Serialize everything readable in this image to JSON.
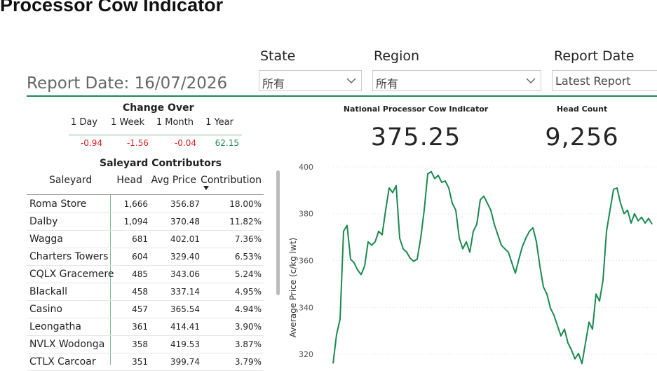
{
  "header": {
    "title": "Processor Cow Indicator"
  },
  "report_date": "Report Date: 16/07/2026",
  "filters": [
    {
      "label": "State",
      "value": "所有"
    },
    {
      "label": "Region",
      "value": "所有"
    },
    {
      "label": "Report Date",
      "value": "Latest Report"
    }
  ],
  "change_over": {
    "title": "Change Over",
    "columns": [
      "1 Day",
      "1 Week",
      "1 Month",
      "1 Year"
    ],
    "values": [
      "-0.94",
      "-1.56",
      "-0.04",
      "62.15"
    ]
  },
  "kpis": [
    {
      "label": "National Processor Cow Indicator",
      "value": "375.25"
    },
    {
      "label": "Head Count",
      "value": "9,256"
    }
  ],
  "saleyard_table": {
    "title": "Saleyard Contributors",
    "columns": [
      "Saleyard",
      "Head",
      "Avg Price",
      "Contribution"
    ],
    "rows": [
      [
        "Roma Store",
        "1,666",
        "356.87",
        "18.00%"
      ],
      [
        "Dalby",
        "1,094",
        "370.48",
        "11.82%"
      ],
      [
        "Wagga",
        "681",
        "402.01",
        "7.36%"
      ],
      [
        "Charters Towers",
        "604",
        "329.40",
        "6.53%"
      ],
      [
        "CQLX Gracemere",
        "485",
        "343.06",
        "5.24%"
      ],
      [
        "Blackall",
        "458",
        "337.14",
        "4.95%"
      ],
      [
        "Casino",
        "457",
        "365.54",
        "4.94%"
      ],
      [
        "Leongatha",
        "361",
        "414.41",
        "3.90%"
      ],
      [
        "NVLX Wodonga",
        "358",
        "419.53",
        "3.87%"
      ],
      [
        "CTLX Carcoar",
        "351",
        "399.74",
        "3.79%"
      ]
    ]
  },
  "chart": {
    "type": "line",
    "y_label": "Average Price (c/kg lwt)",
    "color": "#1a8a4e",
    "ylim": [
      316,
      402
    ],
    "yticks": [
      320,
      340,
      360,
      380,
      400
    ],
    "grid": true,
    "values": [
      316,
      328.4,
      335,
      372.5,
      375,
      360.6,
      359,
      356,
      354,
      357.6,
      368,
      366.6,
      368,
      372.5,
      371,
      381.5,
      391,
      389,
      392,
      369.6,
      365,
      363.6,
      361,
      359.7,
      360.6,
      369.6,
      381.5,
      397,
      398,
      395,
      396.4,
      393.4,
      394,
      391,
      384.5,
      381.5,
      369.6,
      365,
      368,
      363.6,
      372.5,
      375.5,
      386,
      387.5,
      384.5,
      381.5,
      375.5,
      371,
      366.6,
      365,
      363.6,
      359,
      354.6,
      360.6,
      366,
      369.6,
      372.5,
      374,
      368,
      357.6,
      348.7,
      345.7,
      339.7,
      336.7,
      332.2,
      327.8,
      330.7,
      324.8,
      321.8,
      318,
      320.3,
      316,
      324.8,
      333.7,
      330.7,
      345.7,
      342.7,
      351.6,
      372.5,
      381.5,
      390.4,
      391,
      384.5,
      380,
      381.5,
      376,
      380,
      377,
      378.5,
      376,
      378,
      375.5
    ]
  }
}
